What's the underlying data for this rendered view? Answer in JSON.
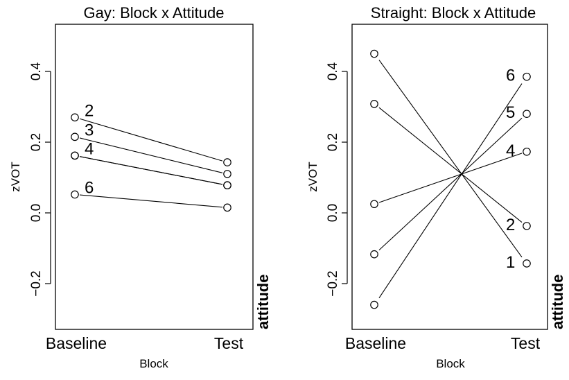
{
  "chart_data": [
    {
      "type": "line",
      "title": "Gay: Block x Attitude",
      "xlabel": "Block",
      "ylabel": "zVOT",
      "side_label": "attitude",
      "categories": [
        "Baseline",
        "Test"
      ],
      "ylim": [
        -0.32,
        0.55
      ],
      "yticks": [
        -0.2,
        0.0,
        0.2,
        0.4
      ],
      "ytick_labels": [
        "−0.2",
        "0.0",
        "0.2",
        "0.4"
      ],
      "series": [
        {
          "name": "2",
          "values": [
            0.27,
            0.143
          ]
        },
        {
          "name": "3",
          "values": [
            0.215,
            0.11
          ]
        },
        {
          "name": "4",
          "values": [
            0.162,
            0.078
          ]
        },
        {
          "name": "",
          "values": [
            0.162,
            0.078
          ]
        },
        {
          "name": "6",
          "values": [
            0.052,
            0.015
          ]
        }
      ]
    },
    {
      "type": "line",
      "title": "Straight: Block x Attitude",
      "xlabel": "Block",
      "ylabel": "zVOT",
      "side_label": "attitude",
      "categories": [
        "Baseline",
        "Test"
      ],
      "ylim": [
        -0.32,
        0.55
      ],
      "yticks": [
        -0.2,
        0.0,
        0.2,
        0.4
      ],
      "ytick_labels": [
        "−0.2",
        "0.0",
        "0.2",
        "0.4"
      ],
      "series": [
        {
          "name": "1",
          "values": [
            0.45,
            -0.143
          ]
        },
        {
          "name": "2",
          "values": [
            0.308,
            -0.037
          ]
        },
        {
          "name": "4",
          "values": [
            0.025,
            0.173
          ]
        },
        {
          "name": "5",
          "values": [
            -0.117,
            0.28
          ]
        },
        {
          "name": "6",
          "values": [
            -0.26,
            0.385
          ]
        }
      ]
    }
  ]
}
